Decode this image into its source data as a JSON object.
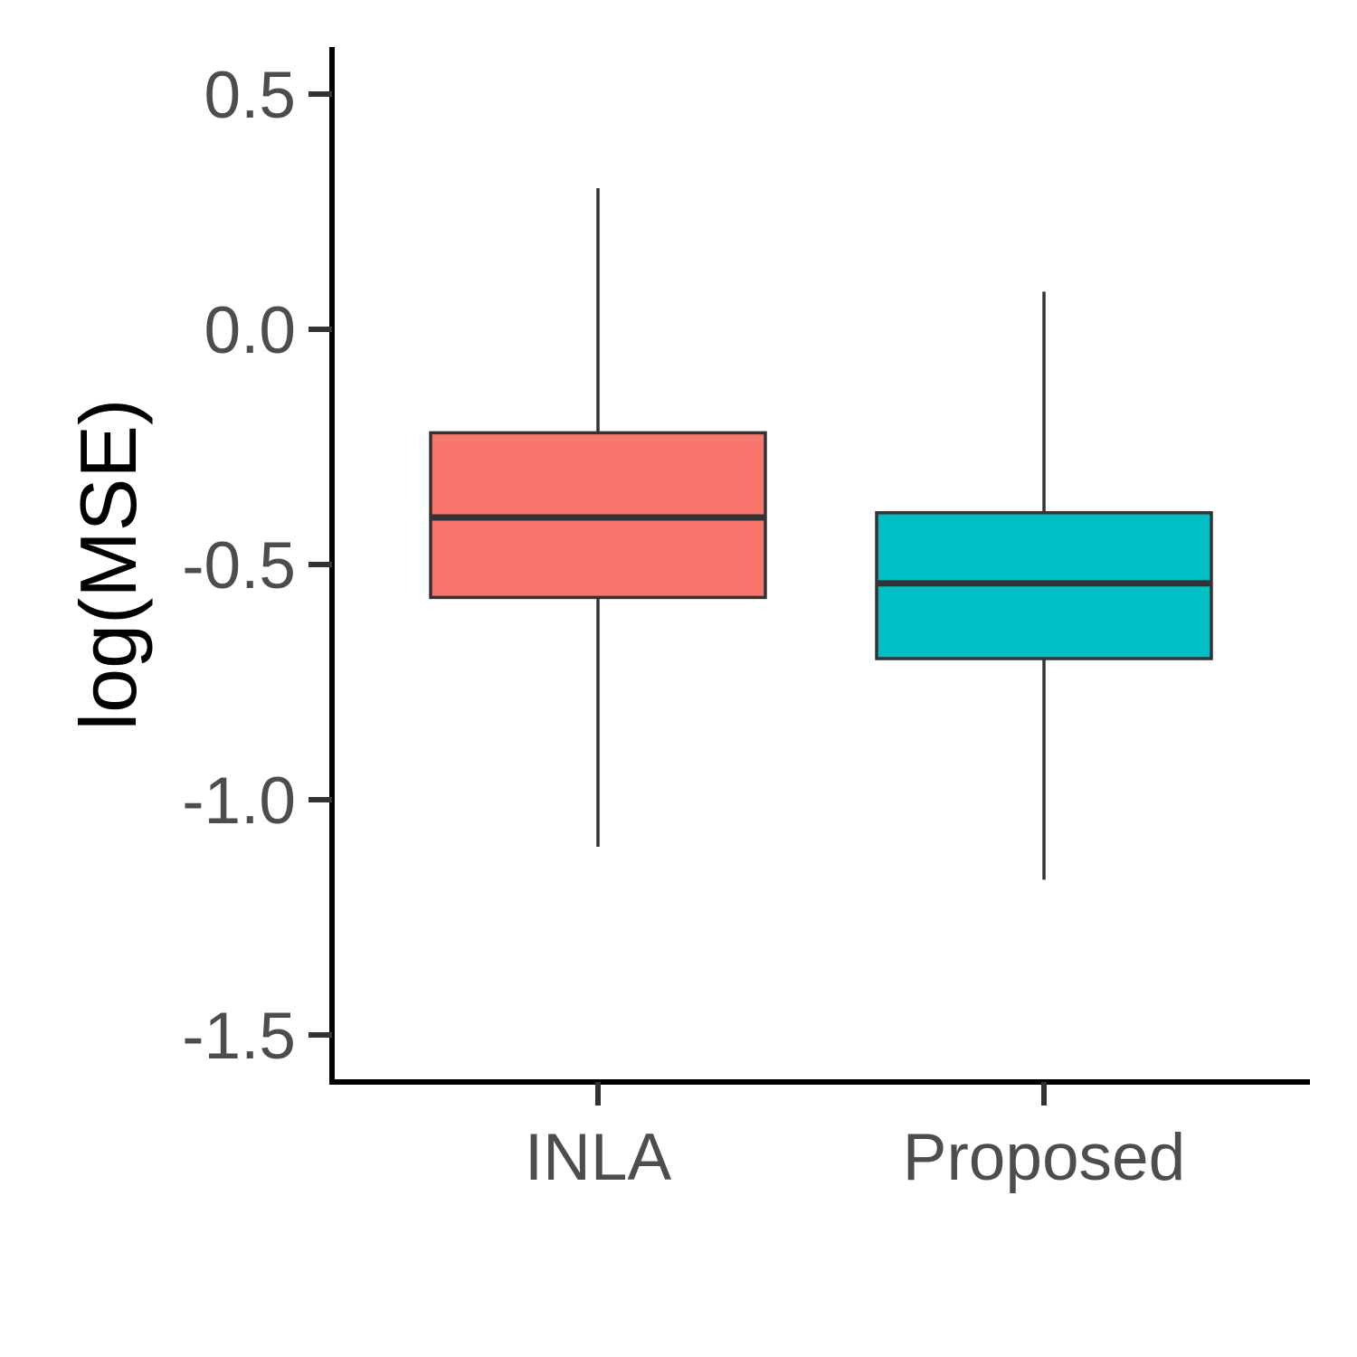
{
  "chart_data": {
    "type": "boxplot",
    "title": "",
    "xlabel": "",
    "ylabel": "log(MSE)",
    "ylim": [
      -1.6,
      0.6
    ],
    "y_ticks": [
      0.5,
      0.0,
      -0.5,
      -1.0,
      -1.5
    ],
    "y_tick_labels": [
      "0.5",
      "0.0",
      "-0.5",
      "-1.0",
      "-1.5"
    ],
    "categories": [
      "INLA",
      "Proposed"
    ],
    "grid": false,
    "legend": "none",
    "boxes": [
      {
        "category": "INLA",
        "whisker_high": 0.3,
        "q3": -0.22,
        "median": -0.4,
        "q1": -0.57,
        "whisker_low": -1.1,
        "fill": "#F8766D"
      },
      {
        "category": "Proposed",
        "whisker_high": 0.08,
        "q3": -0.39,
        "median": -0.54,
        "q1": -0.7,
        "whisker_low": -1.17,
        "fill": "#00BFC4"
      }
    ]
  }
}
